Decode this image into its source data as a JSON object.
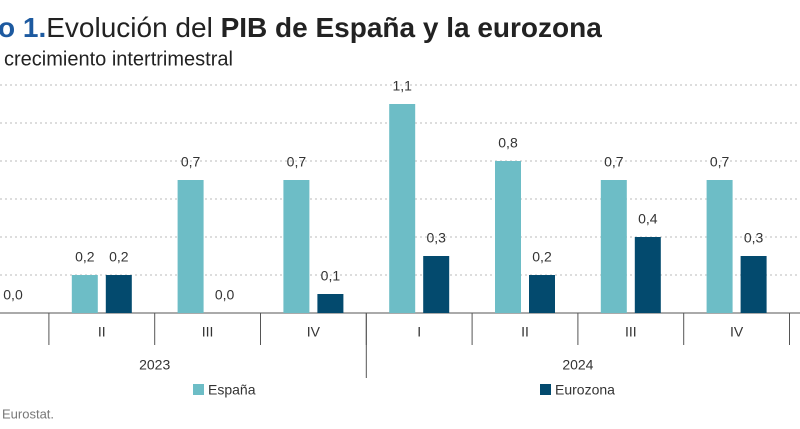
{
  "chart_data": {
    "type": "bar",
    "title_number": "o 1.",
    "title_lead": "Evolución del ",
    "title_bold": "PIB de España y la eurozona",
    "subtitle": "crecimiento intertrimestral",
    "source": "Eurostat.",
    "categories": [
      null,
      "II",
      "III",
      "IV",
      "I",
      "II",
      "III",
      "IV"
    ],
    "year_groups": [
      {
        "name": "2023",
        "size": 4
      },
      {
        "name": "2024",
        "size": 4
      }
    ],
    "series": [
      {
        "name": "España",
        "color": "#6dbdc6",
        "values": [
          null,
          0.2,
          0.7,
          0.7,
          1.1,
          0.8,
          0.7,
          0.7
        ],
        "value_labels": [
          null,
          "0,2",
          "0,7",
          "0,7",
          "1,1",
          "0,8",
          "0,7",
          "0,7"
        ]
      },
      {
        "name": "Eurozona",
        "color": "#034a6e",
        "values": [
          0.0,
          0.2,
          0.0,
          0.1,
          0.3,
          0.2,
          0.4,
          0.3
        ],
        "value_labels": [
          "0,0",
          "0,2",
          "0,0",
          "0,1",
          "0,3",
          "0,2",
          "0,4",
          "0,3"
        ]
      }
    ],
    "ylim": [
      0,
      1.2
    ],
    "yticks": [
      0,
      0.2,
      0.4,
      0.6,
      0.8,
      1.0,
      1.2
    ],
    "grid": true
  }
}
